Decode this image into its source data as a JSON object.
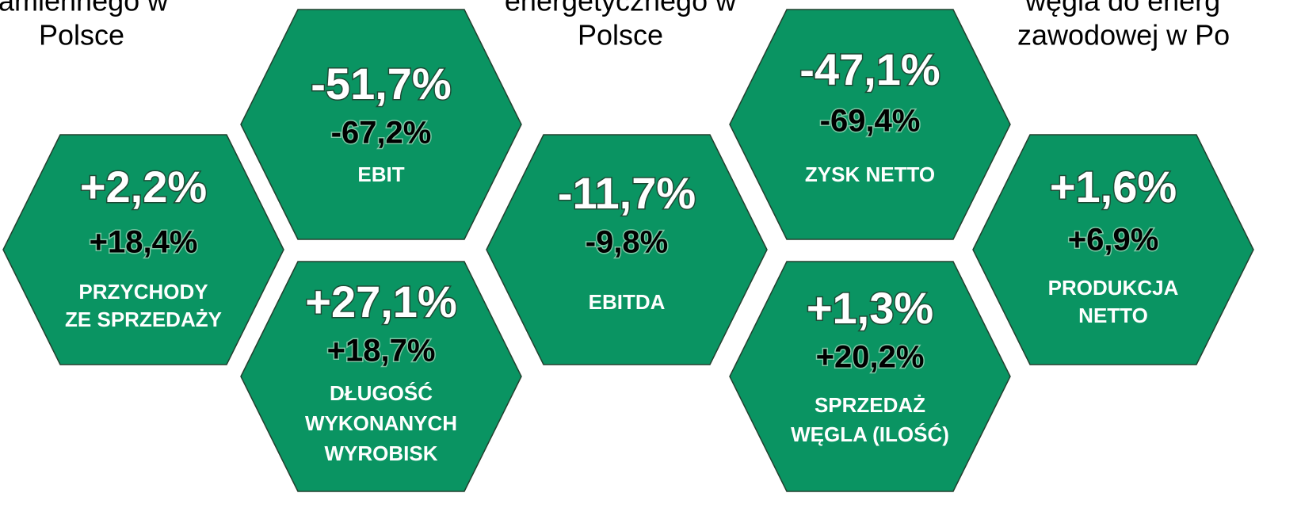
{
  "header_fragments": [
    {
      "lines": [
        "amiennego w",
        "Polsce"
      ]
    },
    {
      "lines": [
        "energetycznego w",
        "Polsce"
      ]
    },
    {
      "lines": [
        "węgla do energ",
        "zawodowej w Po"
      ]
    }
  ],
  "hexagons": [
    {
      "main": "+2,2%",
      "secondary": "+18,4%",
      "label": [
        "PRZYCHODY",
        "ZE SPRZEDAŻY"
      ]
    },
    {
      "main": "-51,7%",
      "secondary": "-67,2%",
      "label": [
        "EBIT"
      ]
    },
    {
      "main": "+27,1%",
      "secondary": "+18,7%",
      "label": [
        "DŁUGOŚĆ",
        "WYKONANYCH",
        "WYROBISK"
      ]
    },
    {
      "main": "-11,7%",
      "secondary": "-9,8%",
      "label": [
        "EBITDA"
      ]
    },
    {
      "main": "-47,1%",
      "secondary": "-69,4%",
      "label": [
        "ZYSK NETTO"
      ]
    },
    {
      "main": "+1,3%",
      "secondary": "+20,2%",
      "label": [
        "SPRZEDAŻ",
        "WĘGLA (ILOŚĆ)"
      ]
    },
    {
      "main": "+1,6%",
      "secondary": "+6,9%",
      "label": [
        "PRODUKCJA",
        "NETTO"
      ]
    }
  ]
}
